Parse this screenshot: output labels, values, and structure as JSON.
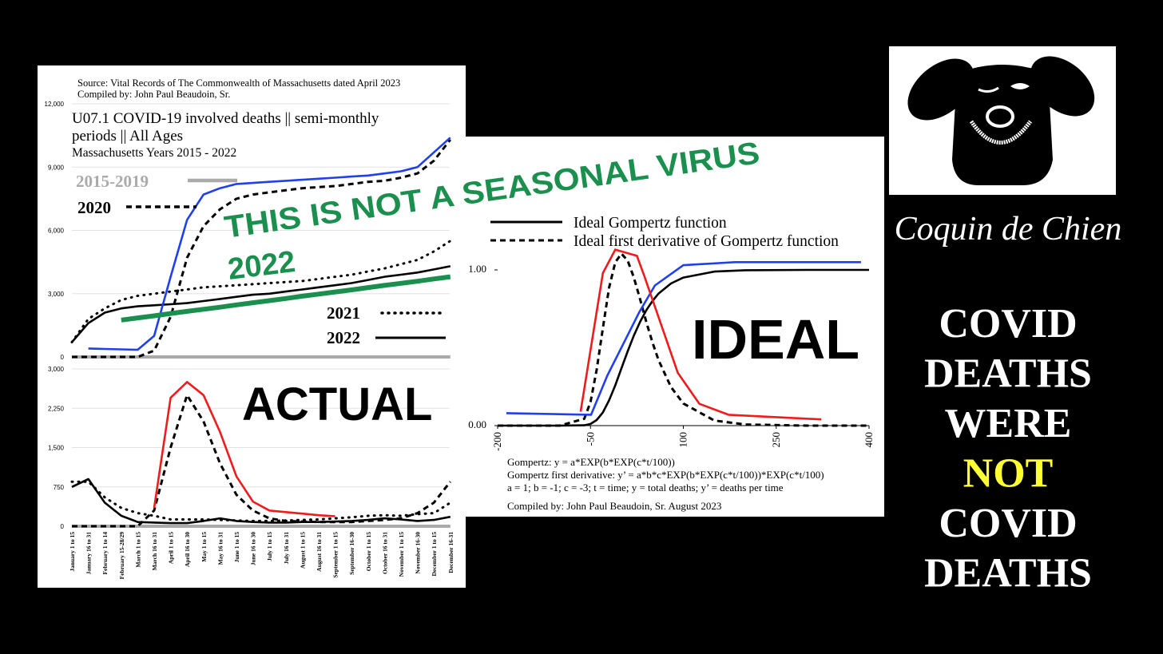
{
  "chart_data": [
    {
      "type": "line",
      "source": [
        "Source:  Vital Records of The Commonwealth of Massachusetts dated April 2023",
        "Compiled by:  John Paul Beaudoin, Sr."
      ],
      "title": [
        "U07.1 COVID-19 involved deaths || semi-monthly",
        "periods || All Ages"
      ],
      "subtitle": "Massachusetts Years 2015 - 2022",
      "annotations": [
        {
          "text": "THIS IS NOT A SEASONAL VIRUS",
          "color": "#1a8f4e"
        }
      ],
      "ylim": [
        0,
        12000
      ],
      "yticks": [
        0,
        {
          "value": 3000,
          "label": "3,000"
        },
        {
          "value": 6000,
          "label": "6,000"
        },
        {
          "value": 9000,
          "label": "9,000"
        },
        {
          "value": 12000,
          "label": "12,000"
        }
      ],
      "grid": true,
      "series": [
        {
          "name": "2015-2019",
          "color": "#aaaaaa",
          "style": "thick",
          "values": [
            0,
            0,
            0,
            0,
            0,
            0,
            0,
            0,
            0,
            0,
            0,
            0,
            0,
            0,
            0,
            0,
            0,
            0,
            0,
            0,
            0,
            0,
            0,
            0
          ]
        },
        {
          "name": "2020",
          "color": "#000000",
          "style": "dashed",
          "values": [
            0,
            0,
            0,
            0,
            0,
            300,
            1900,
            4700,
            6200,
            7000,
            7500,
            7700,
            7800,
            7900,
            8000,
            8050,
            8100,
            8200,
            8300,
            8350,
            8500,
            8700,
            9300,
            10300
          ]
        },
        {
          "name": "2021",
          "color": "#000000",
          "style": "dotted",
          "values": [
            700,
            1800,
            2300,
            2700,
            2900,
            3000,
            3100,
            3200,
            3300,
            3350,
            3400,
            3450,
            3500,
            3550,
            3600,
            3700,
            3800,
            3900,
            4050,
            4200,
            4400,
            4600,
            5000,
            5500
          ]
        },
        {
          "name": "2022",
          "color": "#000000",
          "style": "solid",
          "values": [
            700,
            1600,
            2100,
            2300,
            2400,
            2450,
            2500,
            2550,
            2650,
            2750,
            2850,
            2950,
            3000,
            3100,
            3200,
            3300,
            3400,
            3500,
            3650,
            3800,
            3900,
            4000,
            4150,
            4300
          ]
        },
        {
          "color": "#1f3ff0",
          "style": "solid",
          "values": [
            null,
            400,
            380,
            360,
            340,
            1000,
            3800,
            6500,
            7700,
            8000,
            8200,
            8250,
            8300,
            8350,
            8400,
            8450,
            8500,
            8550,
            8600,
            8700,
            8800,
            9000,
            9700,
            10400
          ]
        },
        {
          "name": "2022",
          "color": "#1a8f4e",
          "style": "trend",
          "values": [
            null,
            null,
            null,
            1750,
            1850,
            1950,
            2060,
            2160,
            2260,
            2360,
            2470,
            2570,
            2670,
            2770,
            2880,
            2980,
            3080,
            3180,
            3290,
            3390,
            3490,
            3590,
            3700,
            3800
          ]
        }
      ]
    },
    {
      "type": "line",
      "annotations": [
        {
          "text": "ACTUAL",
          "color": "#000000"
        }
      ],
      "categories": [
        "January 1 to 15",
        "January 16 to 31",
        "February 1 to 14",
        "February 15-28/29",
        "March 1 to 15",
        "March 16 to 31",
        "April 1 to 15",
        "April 16 to 30",
        "May 1 to 15",
        "May 16 to 31",
        "June 1 to 15",
        "June 16 to 30",
        "July 1 to 15",
        "July 16 to 31",
        "August 1 to 15",
        "August 16 to 31",
        "September 1 to 15",
        "September 16-30",
        "October 1 to 15",
        "October 16 to 31",
        "November 1 to 15",
        "November 16-30",
        "December 1 to 15",
        "December 16-31"
      ],
      "ylim": [
        0,
        3000
      ],
      "yticks": [
        0,
        750,
        {
          "value": 1500,
          "label": "1,500"
        },
        {
          "value": 2250,
          "label": "2,250"
        },
        {
          "value": 3000,
          "label": "3,000"
        }
      ],
      "grid": true,
      "series": [
        {
          "color": "#aaaaaa",
          "style": "thick",
          "values": [
            0,
            0,
            0,
            0,
            0,
            0,
            0,
            0,
            0,
            0,
            0,
            0,
            0,
            0,
            0,
            0,
            0,
            0,
            0,
            0,
            0,
            0,
            0,
            0
          ]
        },
        {
          "color": "#000000",
          "style": "dashed",
          "values": [
            0,
            0,
            0,
            0,
            0,
            300,
            1500,
            2500,
            2000,
            1200,
            600,
            300,
            150,
            100,
            90,
            80,
            80,
            80,
            100,
            120,
            150,
            250,
            450,
            850
          ]
        },
        {
          "color": "#000000",
          "style": "dotted",
          "values": [
            850,
            850,
            550,
            350,
            250,
            200,
            130,
            130,
            130,
            120,
            110,
            100,
            100,
            110,
            120,
            130,
            150,
            170,
            200,
            210,
            200,
            230,
            250,
            450
          ]
        },
        {
          "color": "#000000",
          "style": "solid",
          "values": [
            750,
            900,
            450,
            200,
            80,
            70,
            60,
            60,
            100,
            150,
            100,
            80,
            70,
            70,
            80,
            80,
            90,
            100,
            120,
            150,
            130,
            100,
            120,
            180
          ]
        },
        {
          "color": "#ee1c1c",
          "style": "solid",
          "values": [
            null,
            null,
            null,
            null,
            null,
            350,
            2450,
            2750,
            2500,
            1800,
            950,
            470,
            300,
            270,
            240,
            210,
            190,
            null,
            null,
            null,
            null,
            null,
            null,
            null
          ]
        }
      ]
    },
    {
      "type": "line",
      "annotations": [
        {
          "text": "IDEAL",
          "color": "#000000"
        }
      ],
      "xlim": [
        -200,
        400
      ],
      "xticks": [
        -200,
        -50,
        100,
        250,
        400
      ],
      "ylim": [
        0,
        1.2
      ],
      "yticks": [
        {
          "value": 0,
          "label": "0.00"
        },
        {
          "value": 1,
          "label": "1.00"
        }
      ],
      "series": [
        {
          "name": "Ideal Gompertz function",
          "color": "#000000",
          "style": "solid",
          "x": [
            -200,
            -100,
            -60,
            -50,
            -40,
            -30,
            -20,
            -10,
            0,
            10,
            20,
            30,
            40,
            50,
            60,
            80,
            100,
            150,
            200,
            300,
            400
          ],
          "values": [
            0,
            0,
            0.002,
            0.011,
            0.036,
            0.085,
            0.162,
            0.259,
            0.368,
            0.477,
            0.578,
            0.666,
            0.74,
            0.8,
            0.848,
            0.913,
            0.951,
            0.989,
            0.998,
            1,
            1
          ]
        },
        {
          "name": "Ideal first derivative of Gompertz function",
          "color": "#000000",
          "style": "dashed",
          "x": [
            -200,
            -100,
            -60,
            -50,
            -40,
            -30,
            -20,
            -10,
            0,
            10,
            20,
            30,
            40,
            50,
            60,
            80,
            100,
            150,
            200,
            300,
            400
          ],
          "values": [
            0,
            0,
            0.044,
            0.152,
            0.359,
            0.627,
            0.885,
            1.049,
            1.104,
            1.06,
            0.952,
            0.813,
            0.668,
            0.535,
            0.42,
            0.248,
            0.142,
            0.033,
            0.007,
            0,
            0
          ]
        },
        {
          "color": "#1f3ff0",
          "style": "solid",
          "x": [
            -186,
            -49,
            -23,
            29,
            54,
            100,
            183,
            387
          ],
          "values": [
            0.08,
            0.07,
            0.32,
            0.73,
            0.9,
            1.03,
            1.05,
            1.05
          ]
        },
        {
          "color": "#ee1c1c",
          "style": "solid",
          "x": [
            -66,
            -30,
            -10,
            25,
            37,
            91,
            126,
            173,
            323
          ],
          "values": [
            0.09,
            0.98,
            1.13,
            1.09,
            0.96,
            0.34,
            0.14,
            0.07,
            0.04
          ]
        }
      ],
      "notes": [
        "Gompertz:  y = a*EXP(b*EXP(c*t/100))",
        "Gompertz first derivative:  y’ = a*b*c*EXP(b*EXP(c*t/100))*EXP(c*t/100)",
        "a = 1; b = -1; c = -3; t = time; y = total deaths; y’ = deaths per time"
      ],
      "credit": "Compiled by:  John Paul Beaudoin, Sr. August 2023"
    }
  ],
  "logo": {
    "name": "Coquin de Chien"
  },
  "message": [
    {
      "text": "COVID",
      "color": "#ffffff"
    },
    {
      "text": "DEATHS",
      "color": "#ffffff"
    },
    {
      "text": "WERE",
      "color": "#ffffff"
    },
    {
      "text": "NOT",
      "color": "#ffff33"
    },
    {
      "text": "COVID",
      "color": "#ffffff"
    },
    {
      "text": "DEATHS",
      "color": "#ffffff"
    }
  ]
}
